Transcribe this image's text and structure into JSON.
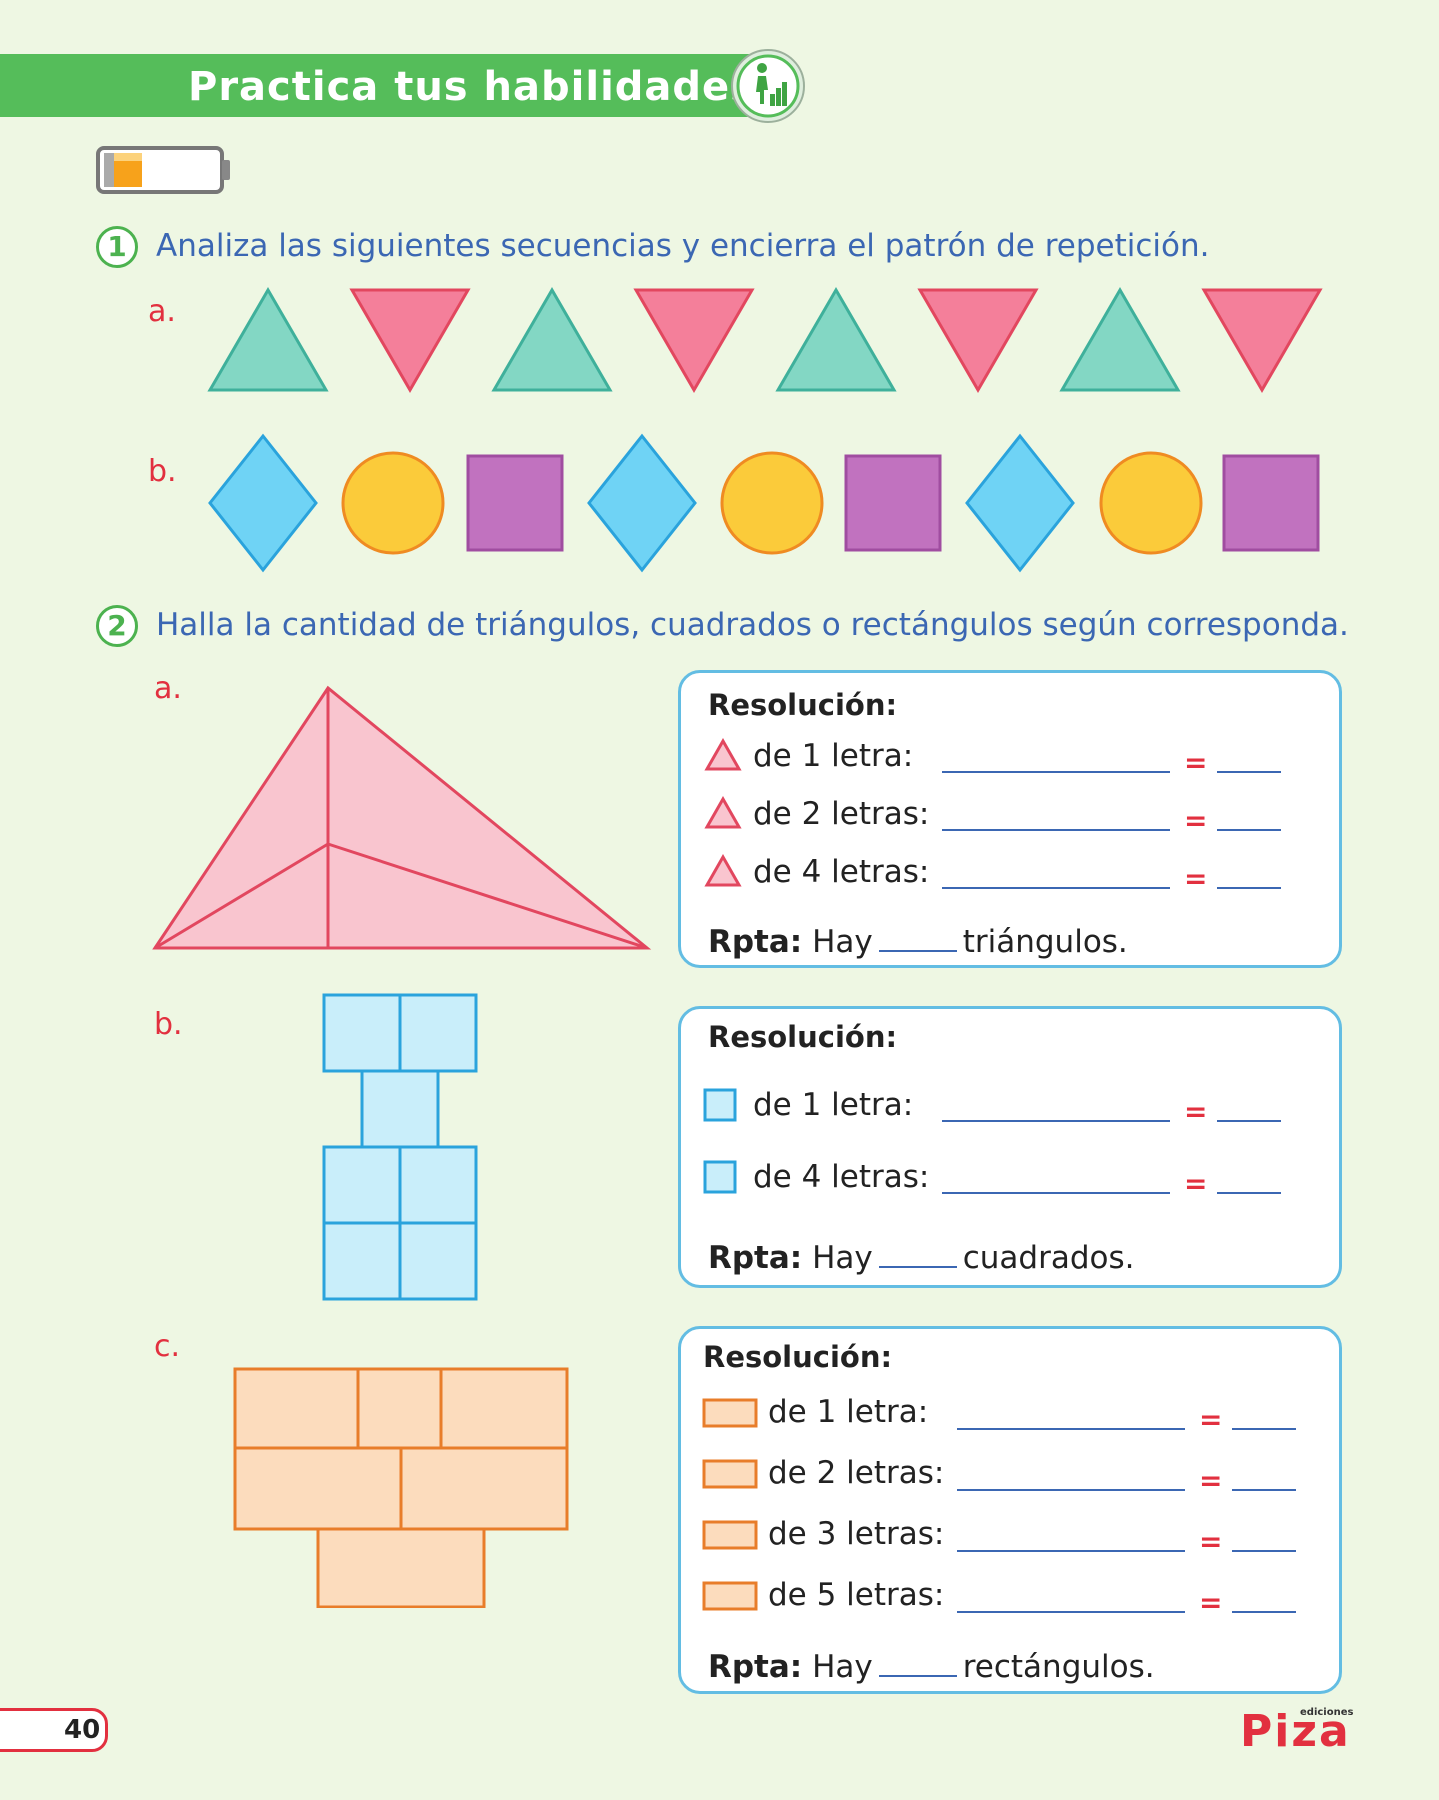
{
  "header": {
    "title": "Practica tus habilidades",
    "badge_icon": "climbing-person-icon",
    "battery_icon": "battery-low-icon"
  },
  "q1": {
    "number": "1",
    "text": "Analiza las siguientes secuencias y encierra el patrón de repetición.",
    "a_label": "a.",
    "b_label": "b."
  },
  "q2": {
    "number": "2",
    "text": "Halla la cantidad de triángulos, cuadrados o rectángulos según corresponda.",
    "a": {
      "label": "a.",
      "title": "Resolución:",
      "lines": [
        "de 1 letra:",
        "de 2 letras:",
        "de 4 letras:"
      ],
      "eq": "=",
      "rpta_label": "Rpta:",
      "rpta_pre": "Hay",
      "rpta_post": "triángulos."
    },
    "b": {
      "label": "b.",
      "title": "Resolución:",
      "lines": [
        "de 1 letra:",
        "de 4 letras:"
      ],
      "eq": "=",
      "rpta_label": "Rpta:",
      "rpta_pre": "Hay",
      "rpta_post": "cuadrados."
    },
    "c": {
      "label": "c.",
      "title": "Resolución:",
      "lines": [
        "de 1 letra:",
        "de 2 letras:",
        "de 3 letras:",
        "de 5 letras:"
      ],
      "eq": "=",
      "rpta_label": "Rpta:",
      "rpta_pre": "Hay",
      "rpta_post": "rectángulos."
    }
  },
  "footer": {
    "page_number": "40",
    "brand_small": "ediciones",
    "brand": "Piza"
  },
  "colors": {
    "green": "#55bd5a",
    "teal_triangle": "#83d7c4",
    "pink_triangle": "#f47f9a",
    "blue_diamond": "#6fd3f5",
    "yellow_circle": "#fbcb3a",
    "purple_square": "#c172bf",
    "red_accent": "#e2303f",
    "text_blue": "#3b67b3"
  }
}
